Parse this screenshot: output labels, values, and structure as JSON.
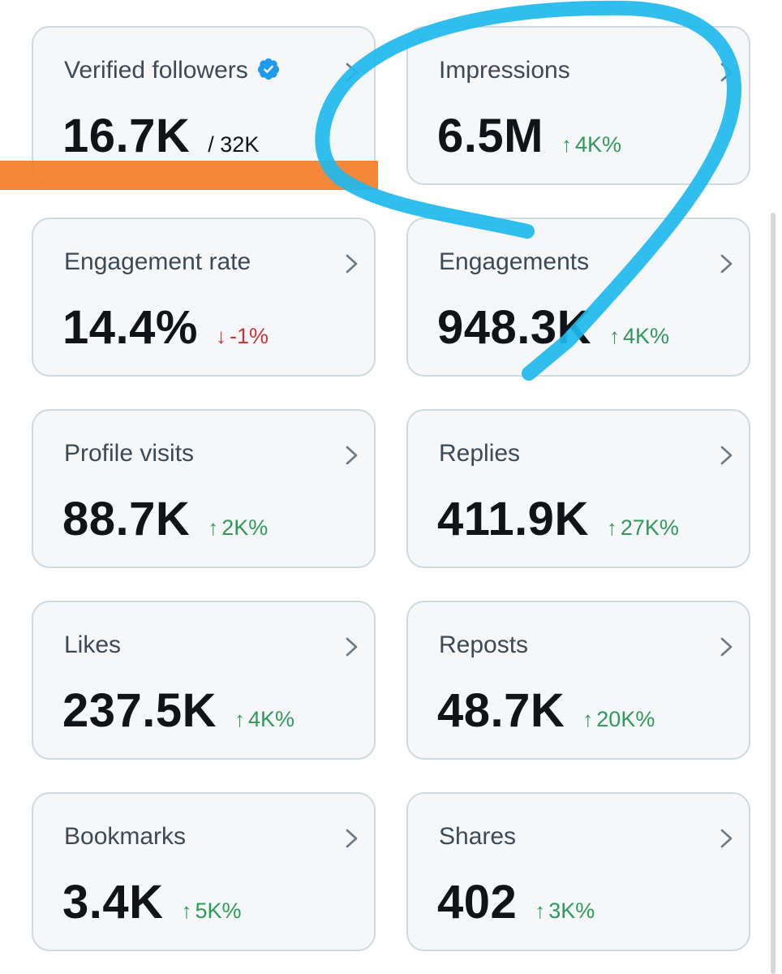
{
  "colors": {
    "card_bg": "#f6f7f8",
    "card_border": "#cfd9de",
    "positive": "#2f9a5c",
    "negative": "#c9363a",
    "verified_blue": "#1d9bf0",
    "highlight_orange": "#f47a24",
    "marker_blue": "#1eb8ee"
  },
  "cards": [
    {
      "label": "Verified followers",
      "value": "16.7K",
      "sub": "/ 32K",
      "icon": "verified-badge-icon"
    },
    {
      "label": "Impressions",
      "value": "6.5M",
      "delta": "4K%",
      "direction": "up"
    },
    {
      "label": "Engagement rate",
      "value": "14.4%",
      "delta": "-1%",
      "direction": "down"
    },
    {
      "label": "Engagements",
      "value": "948.3K",
      "delta": "4K%",
      "direction": "up"
    },
    {
      "label": "Profile visits",
      "value": "88.7K",
      "delta": "2K%",
      "direction": "up"
    },
    {
      "label": "Replies",
      "value": "411.9K",
      "delta": "27K%",
      "direction": "up"
    },
    {
      "label": "Likes",
      "value": "237.5K",
      "delta": "4K%",
      "direction": "up"
    },
    {
      "label": "Reposts",
      "value": "48.7K",
      "delta": "20K%",
      "direction": "up"
    },
    {
      "label": "Bookmarks",
      "value": "3.4K",
      "delta": "5K%",
      "direction": "up"
    },
    {
      "label": "Shares",
      "value": "402",
      "delta": "3K%",
      "direction": "up"
    }
  ],
  "arrows": {
    "up": "↑",
    "down": "↓"
  }
}
